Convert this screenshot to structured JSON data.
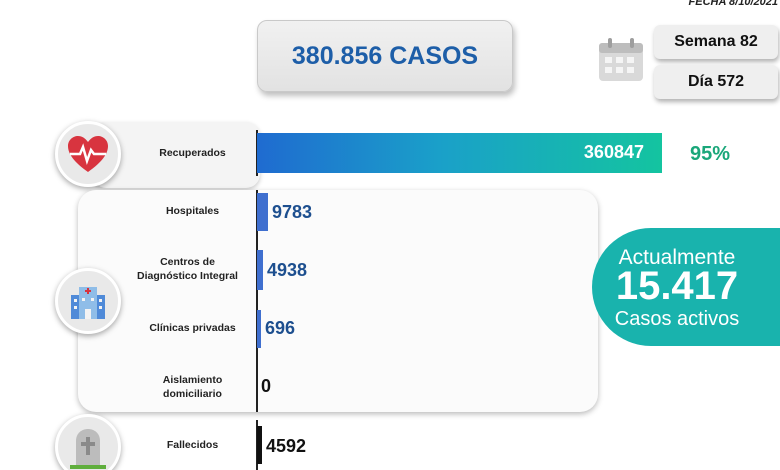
{
  "header": {
    "date": "FECHA 8/10/2021",
    "total_cases": "380.856 CASOS",
    "week": "Semana 82",
    "day": "Día 572"
  },
  "active": {
    "line1": "Actualmente",
    "value": "15.417",
    "line3": "Casos activos"
  },
  "icons": {
    "calendar": "calendar-icon",
    "recovered": "heart-pulse-icon",
    "hospital": "hospital-icon",
    "deceased": "gravestone-icon"
  },
  "colors": {
    "recovered_start": "#1f6bd0",
    "recovered_end": "#14c4a0",
    "bar": "#3f6fcf",
    "deceased": "#111111",
    "percent": "#1aa77a",
    "active_bg": "#19b3ad"
  },
  "chart_data": {
    "type": "bar",
    "orientation": "horizontal",
    "categories": [
      "Recuperados",
      "Hospitales",
      "Centros de Diagnóstico Integral",
      "Clínicas privadas",
      "Aislamiento domiciliario",
      "Fallecidos"
    ],
    "label_lines": [
      [
        "Recuperados"
      ],
      [
        "Hospitales"
      ],
      [
        "Centros de",
        "Diagnóstico Integral"
      ],
      [
        "Clínicas privadas"
      ],
      [
        "Aislamiento",
        "domiciliario"
      ],
      [
        "Fallecidos"
      ]
    ],
    "values": [
      360847,
      9783,
      4938,
      696,
      0,
      4592
    ],
    "value_labels": [
      "360847",
      "9783",
      "4938",
      "696",
      "0",
      "4592"
    ],
    "annotations": {
      "recovered_percent": "95%"
    }
  }
}
